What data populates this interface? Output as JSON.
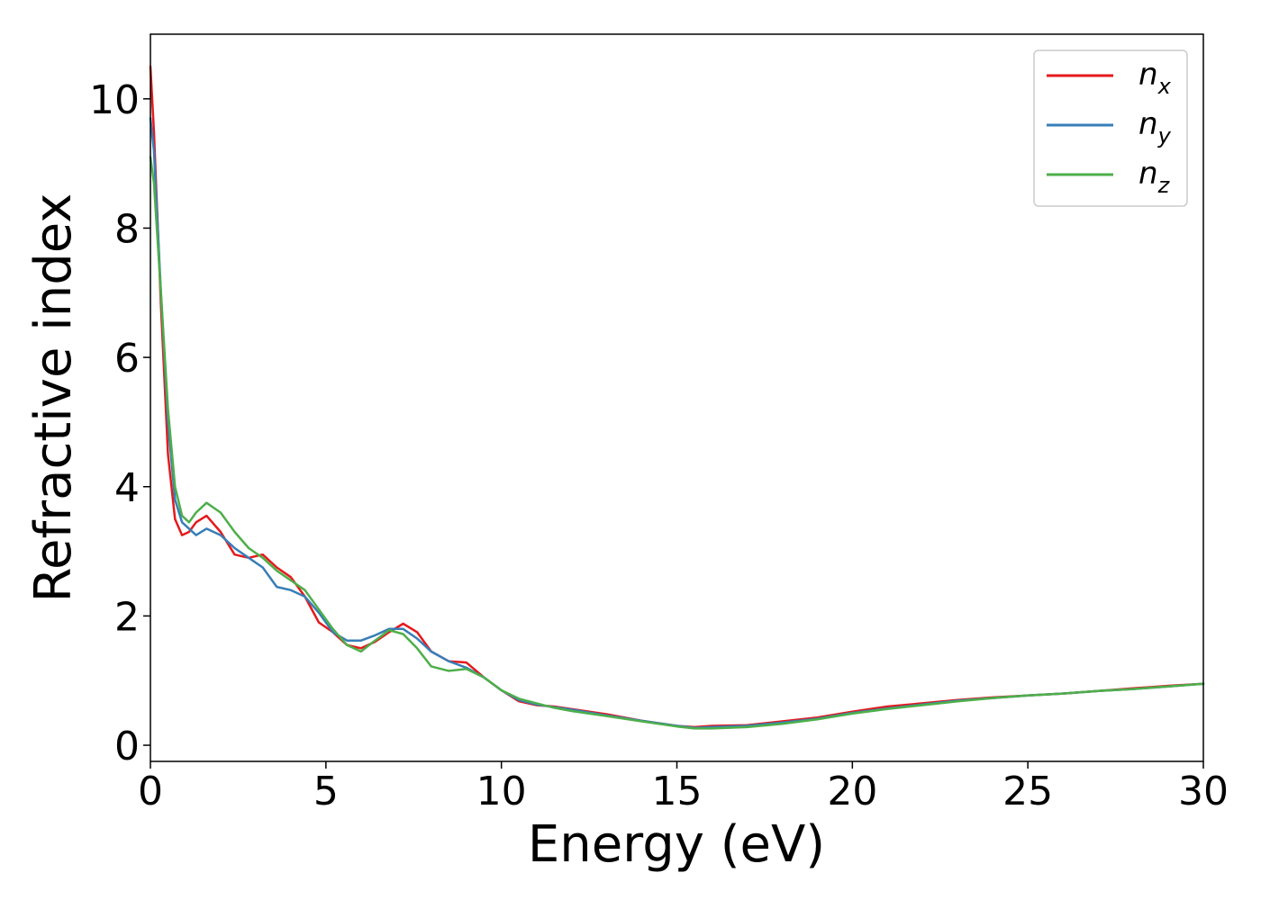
{
  "chart_data": {
    "type": "line",
    "xlabel": "Energy (eV)",
    "ylabel": "Refractive index",
    "xlim": [
      0,
      30
    ],
    "ylim": [
      -0.25,
      11
    ],
    "xticks": [
      "0",
      "5",
      "10",
      "15",
      "20",
      "25",
      "30"
    ],
    "yticks": [
      "0",
      "2",
      "4",
      "6",
      "8",
      "10"
    ],
    "grid": false,
    "legend_position": "top-right",
    "series": [
      {
        "name": "n_x",
        "label_main": "n",
        "label_sub": "x",
        "color": "#e41a1c",
        "x": [
          0,
          0.1,
          0.3,
          0.5,
          0.7,
          0.9,
          1.1,
          1.3,
          1.6,
          2.0,
          2.4,
          2.8,
          3.2,
          3.6,
          4.0,
          4.4,
          4.8,
          5.2,
          5.6,
          6.0,
          6.4,
          6.8,
          7.2,
          7.6,
          8.0,
          8.5,
          9.0,
          9.5,
          10,
          10.5,
          11,
          11.5,
          12,
          13,
          14,
          15,
          15.5,
          16,
          17,
          18,
          19,
          20,
          21,
          22,
          23,
          24,
          25,
          26,
          27,
          28,
          29,
          30
        ],
        "y": [
          10.5,
          9.5,
          6.8,
          4.5,
          3.5,
          3.25,
          3.3,
          3.45,
          3.55,
          3.3,
          2.95,
          2.9,
          2.95,
          2.75,
          2.6,
          2.3,
          1.9,
          1.75,
          1.55,
          1.5,
          1.6,
          1.75,
          1.88,
          1.75,
          1.45,
          1.3,
          1.28,
          1.05,
          0.85,
          0.68,
          0.62,
          0.6,
          0.56,
          0.48,
          0.38,
          0.3,
          0.28,
          0.3,
          0.31,
          0.37,
          0.43,
          0.52,
          0.6,
          0.65,
          0.7,
          0.74,
          0.77,
          0.8,
          0.84,
          0.88,
          0.92,
          0.95
        ]
      },
      {
        "name": "n_y",
        "label_main": "n",
        "label_sub": "y",
        "color": "#377eb8",
        "x": [
          0,
          0.1,
          0.3,
          0.5,
          0.7,
          0.9,
          1.1,
          1.3,
          1.6,
          2.0,
          2.4,
          2.8,
          3.2,
          3.6,
          4.0,
          4.4,
          4.8,
          5.2,
          5.6,
          6.0,
          6.4,
          6.8,
          7.2,
          7.6,
          8.0,
          8.5,
          9.0,
          9.5,
          10,
          10.5,
          11,
          11.5,
          12,
          13,
          14,
          15,
          15.5,
          16,
          17,
          18,
          19,
          20,
          21,
          22,
          23,
          24,
          25,
          26,
          27,
          28,
          29,
          30
        ],
        "y": [
          9.7,
          9.2,
          7.0,
          5.0,
          3.8,
          3.45,
          3.35,
          3.25,
          3.35,
          3.25,
          3.05,
          2.9,
          2.75,
          2.45,
          2.4,
          2.3,
          2.05,
          1.75,
          1.62,
          1.62,
          1.7,
          1.8,
          1.8,
          1.65,
          1.45,
          1.3,
          1.2,
          1.05,
          0.85,
          0.7,
          0.63,
          0.59,
          0.55,
          0.46,
          0.38,
          0.3,
          0.27,
          0.28,
          0.3,
          0.35,
          0.41,
          0.5,
          0.57,
          0.63,
          0.69,
          0.73,
          0.77,
          0.8,
          0.84,
          0.87,
          0.91,
          0.95
        ]
      },
      {
        "name": "n_z",
        "label_main": "n",
        "label_sub": "z",
        "color": "#4daf4a",
        "x": [
          0,
          0.1,
          0.3,
          0.5,
          0.7,
          0.9,
          1.1,
          1.3,
          1.6,
          2.0,
          2.4,
          2.8,
          3.2,
          3.6,
          4.0,
          4.4,
          4.8,
          5.2,
          5.6,
          6.0,
          6.4,
          6.8,
          7.2,
          7.6,
          8.0,
          8.5,
          9.0,
          9.5,
          10,
          10.5,
          11,
          11.5,
          12,
          13,
          14,
          15,
          15.5,
          16,
          17,
          18,
          19,
          20,
          21,
          22,
          23,
          24,
          25,
          26,
          27,
          28,
          29,
          30
        ],
        "y": [
          9.1,
          8.7,
          7.0,
          5.2,
          4.0,
          3.55,
          3.45,
          3.6,
          3.75,
          3.6,
          3.3,
          3.05,
          2.9,
          2.7,
          2.55,
          2.4,
          2.1,
          1.8,
          1.55,
          1.45,
          1.62,
          1.78,
          1.72,
          1.5,
          1.22,
          1.15,
          1.18,
          1.05,
          0.85,
          0.72,
          0.65,
          0.58,
          0.53,
          0.45,
          0.37,
          0.29,
          0.26,
          0.26,
          0.28,
          0.33,
          0.4,
          0.49,
          0.56,
          0.62,
          0.68,
          0.73,
          0.77,
          0.8,
          0.84,
          0.87,
          0.91,
          0.95
        ]
      }
    ]
  }
}
